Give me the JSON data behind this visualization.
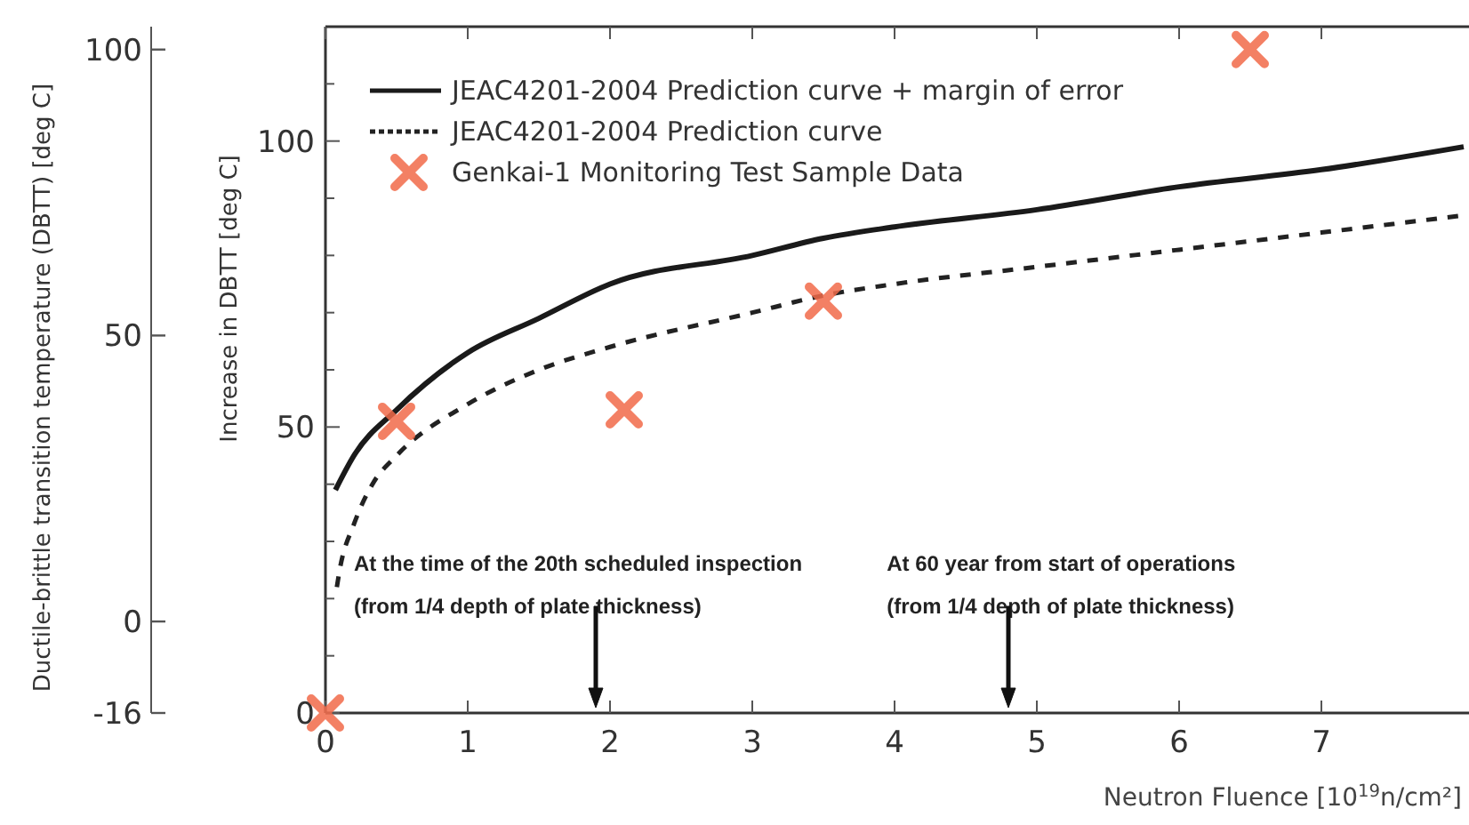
{
  "chart_data": {
    "type": "line",
    "xlabel": "Neutron Fluence [10$^{19}$n/cm²]",
    "ylabel": "Increase in DBTT [deg C]",
    "y2label": "Ductile-brittle transition temperature (DBTT) [deg C]",
    "xlim": [
      0,
      8
    ],
    "xticks": [
      0,
      1,
      2,
      3,
      4,
      5,
      6,
      7
    ],
    "ylim": [
      0,
      120
    ],
    "yticks": [
      0,
      {
        "value": 10,
        "label": null
      },
      {
        "value": 20,
        "label": null
      },
      {
        "value": 30,
        "label": null
      },
      {
        "value": 40,
        "label": null
      },
      50,
      {
        "value": 60,
        "label": null
      },
      {
        "value": 70,
        "label": null
      },
      {
        "value": 80,
        "label": null
      },
      {
        "value": 90,
        "label": null
      },
      100,
      {
        "value": 110,
        "label": null
      }
    ],
    "y2lim": [
      -16,
      104
    ],
    "y2ticks": [
      -16,
      0,
      50,
      100
    ],
    "legend": "top left",
    "grid": false,
    "series": [
      {
        "name": "JEAC4201-2004 Prediction curve + margin of error",
        "color": "#1a1a1a",
        "line_style": "solid",
        "marker": "none",
        "x": [
          0.07,
          0.2,
          0.5,
          1,
          1.5,
          2,
          3,
          3.5,
          4,
          5,
          6,
          7,
          8
        ],
        "values": [
          39,
          45,
          53,
          63,
          69,
          75,
          80,
          83,
          85,
          88,
          92,
          95,
          99
        ]
      },
      {
        "name": "JEAC4201-2004 Prediction curve",
        "color": "#222222",
        "line_style": "dashed",
        "marker": "none",
        "x": [
          0.08,
          0.1,
          0.2,
          0.33,
          0.5,
          1,
          1.5,
          2,
          3,
          3.5,
          4,
          5,
          6,
          7,
          8
        ],
        "values": [
          22,
          25,
          33,
          40,
          45,
          54,
          60,
          64,
          70,
          73,
          75,
          78,
          81,
          84,
          87
        ]
      },
      {
        "name": "Genkai-1 Monitoring Test Sample Data",
        "type": "scatter",
        "color": "#f26b4a",
        "marker": "cross",
        "x": [
          0,
          0.5,
          2.1,
          3.5,
          6.5
        ],
        "values": [
          0,
          51,
          53,
          72,
          116
        ]
      }
    ],
    "ref_lines": [
      {
        "axis": "x",
        "value": 1.9,
        "label": "At the time of the 20th scheduled inspection\n(from 1/4 depth of plate thickness)",
        "color": "#111111"
      },
      {
        "axis": "x",
        "value": 4.8,
        "label": "At 60 year from start of operations\n(from 1/4 depth of plate thickness)",
        "color": "#111111"
      }
    ]
  }
}
